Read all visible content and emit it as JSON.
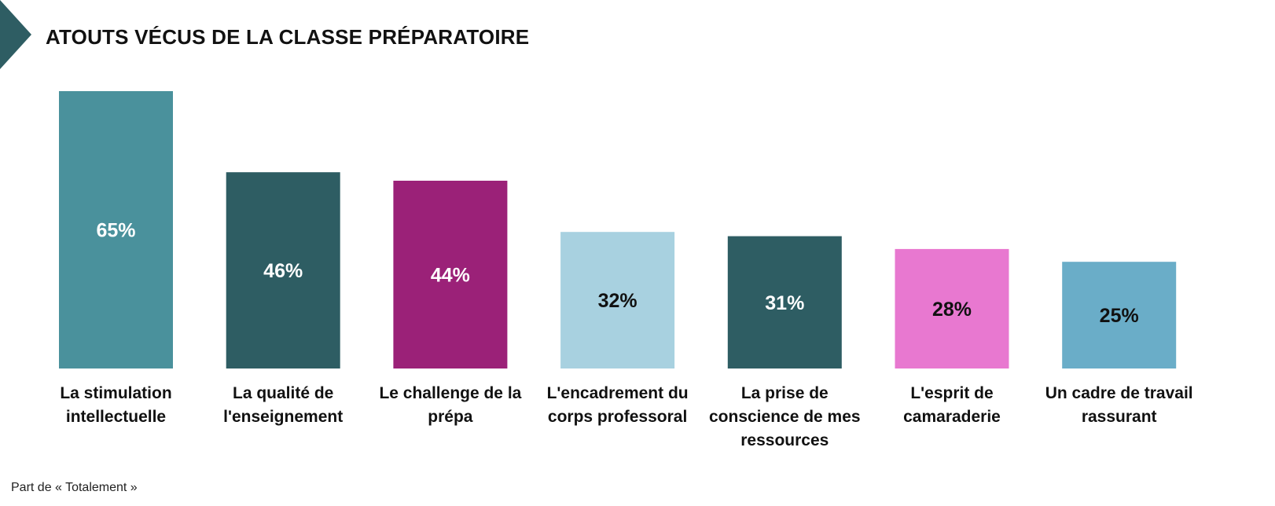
{
  "title": "ATOUTS VÉCUS DE LA CLASSE PRÉPARATOIRE",
  "footnote": "Part de « Totalement »",
  "accent_color": "#2e5d63",
  "chart_data": {
    "type": "bar",
    "title": "ATOUTS VÉCUS DE LA CLASSE PRÉPARATOIRE",
    "xlabel": "",
    "ylabel": "",
    "ylim": [
      0,
      65
    ],
    "grid": false,
    "legend": "none",
    "categories": [
      "La stimulation intellectuelle",
      "La qualité de l'enseignement",
      "Le challenge de la prépa",
      "L'encadrement du corps professoral",
      "La prise de conscience de mes ressources",
      "L'esprit de camaraderie",
      "Un cadre de travail rassurant"
    ],
    "category_lines": [
      [
        "La stimulation",
        "intellectuelle"
      ],
      [
        "La qualité de",
        "l'enseignement"
      ],
      [
        "Le challenge de la",
        "prépa"
      ],
      [
        "L'encadrement du",
        "corps professoral"
      ],
      [
        "La prise de",
        "conscience de mes",
        "ressources"
      ],
      [
        "L'esprit de",
        "camaraderie"
      ],
      [
        "Un cadre de travail",
        "rassurant"
      ]
    ],
    "values": [
      65,
      46,
      44,
      32,
      31,
      28,
      25
    ],
    "value_labels": [
      "65%",
      "46%",
      "44%",
      "32%",
      "31%",
      "28%",
      "25%"
    ],
    "colors": [
      "#4a919c",
      "#2e5d63",
      "#9b2178",
      "#a8d1e0",
      "#2e5d63",
      "#e878d0",
      "#6aadc8"
    ],
    "label_colors": [
      "#ffffff",
      "#ffffff",
      "#ffffff",
      "#111111",
      "#ffffff",
      "#111111",
      "#111111"
    ]
  }
}
